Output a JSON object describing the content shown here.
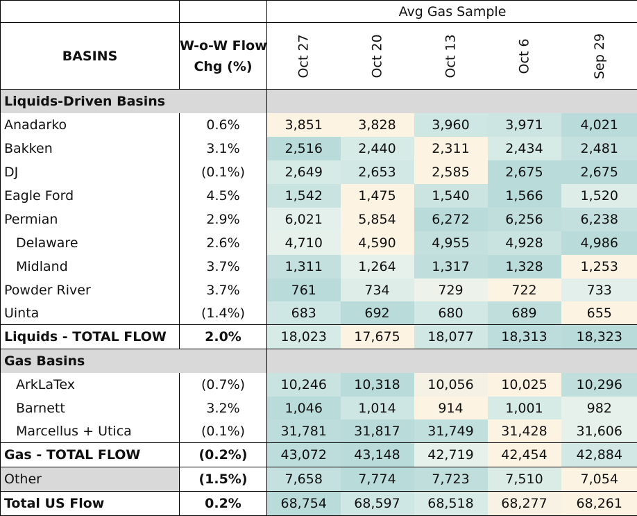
{
  "header": {
    "group_title": "Avg Gas Sample",
    "basins_label": "BASINS",
    "wow_label_line1": "W-o-W Flow",
    "wow_label_line2": "Chg (%)",
    "dates": [
      "Oct 27",
      "Oct 20",
      "Oct 13",
      "Oct 6",
      "Sep 29"
    ]
  },
  "colors": {
    "teal_dark": "#b9dcdb",
    "teal_mid": "#d2e8e6",
    "teal_light": "#e6f1ec",
    "cream": "#fdf3e3",
    "section_grey": "#d9d9d9"
  },
  "sections": {
    "liquids_title": "Liquids-Driven Basins",
    "gas_title": "Gas Basins"
  },
  "liquids_rows": [
    {
      "name": "Anadarko",
      "chg": "0.6%",
      "values": [
        "3,851",
        "3,828",
        "3,960",
        "3,971",
        "4,021"
      ]
    },
    {
      "name": "Bakken",
      "chg": "3.1%",
      "values": [
        "2,516",
        "2,440",
        "2,311",
        "2,434",
        "2,481"
      ]
    },
    {
      "name": "DJ",
      "chg": "(0.1%)",
      "values": [
        "2,649",
        "2,653",
        "2,585",
        "2,675",
        "2,675"
      ]
    },
    {
      "name": "Eagle Ford",
      "chg": "4.5%",
      "values": [
        "1,542",
        "1,475",
        "1,540",
        "1,566",
        "1,520"
      ]
    },
    {
      "name": "Permian",
      "chg": "2.9%",
      "values": [
        "6,021",
        "5,854",
        "6,272",
        "6,256",
        "6,238"
      ]
    },
    {
      "name": "Delaware",
      "chg": "2.6%",
      "values": [
        "4,710",
        "4,590",
        "4,955",
        "4,928",
        "4,986"
      ]
    },
    {
      "name": "Midland",
      "chg": "3.7%",
      "values": [
        "1,311",
        "1,264",
        "1,317",
        "1,328",
        "1,253"
      ]
    },
    {
      "name": "Powder River",
      "chg": "3.7%",
      "values": [
        "761",
        "734",
        "729",
        "722",
        "733"
      ]
    },
    {
      "name": "Uinta",
      "chg": "(1.4%)",
      "values": [
        "683",
        "692",
        "680",
        "689",
        "655"
      ]
    }
  ],
  "liquids_total": {
    "name": "Liquids - TOTAL FLOW",
    "chg": "2.0%",
    "values": [
      "18,023",
      "17,675",
      "18,077",
      "18,313",
      "18,323"
    ]
  },
  "gas_rows": [
    {
      "name": "ArkLaTex",
      "chg": "(0.7%)",
      "values": [
        "10,246",
        "10,318",
        "10,056",
        "10,025",
        "10,296"
      ]
    },
    {
      "name": "Barnett",
      "chg": "3.2%",
      "values": [
        "1,046",
        "1,014",
        "914",
        "1,001",
        "982"
      ]
    },
    {
      "name": "Marcellus + Utica",
      "chg": "(0.1%)",
      "values": [
        "31,781",
        "31,817",
        "31,749",
        "31,428",
        "31,606"
      ]
    }
  ],
  "gas_total": {
    "name": "Gas - TOTAL FLOW",
    "chg": "(0.2%)",
    "values": [
      "43,072",
      "43,148",
      "42,719",
      "42,454",
      "42,884"
    ]
  },
  "other": {
    "name": "Other",
    "chg": "(1.5%)",
    "values": [
      "7,658",
      "7,774",
      "7,723",
      "7,510",
      "7,054"
    ]
  },
  "total_us": {
    "name": "Total US Flow",
    "chg": "0.2%",
    "values": [
      "68,754",
      "68,597",
      "68,518",
      "68,277",
      "68,261"
    ]
  }
}
